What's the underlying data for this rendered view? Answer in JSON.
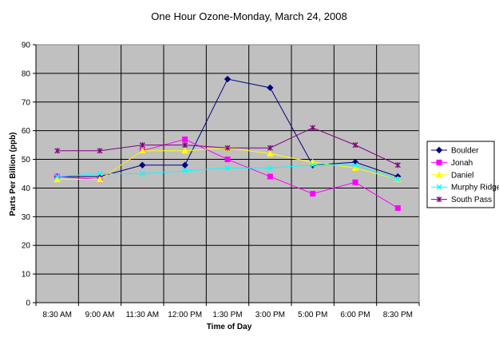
{
  "chart_data": {
    "type": "line",
    "title": "One Hour Ozone-Monday, March 24, 2008",
    "xlabel": "Time of Day",
    "ylabel": "Parts Per Billion (ppb)",
    "ylim": [
      0,
      90
    ],
    "ytick_step": 10,
    "yticks": [
      "0",
      "10",
      "20",
      "30",
      "40",
      "50",
      "60",
      "70",
      "80",
      "90"
    ],
    "categories": [
      "8:30 AM",
      "9:00 AM",
      "11:30 AM",
      "12:00 PM",
      "1:30 PM",
      "3:00 PM",
      "5:00 PM",
      "6:00 PM",
      "8:30 PM"
    ],
    "plot_background": "#c0c0c0",
    "grid": true,
    "legend_position": "right",
    "series": [
      {
        "name": "Boulder",
        "color": "#000080",
        "marker": "diamond",
        "values": [
          44,
          44,
          48,
          48,
          78,
          75,
          48,
          49,
          44
        ]
      },
      {
        "name": "Jonah",
        "color": "#ff00ff",
        "marker": "square",
        "values": [
          44,
          43,
          53,
          57,
          50,
          44,
          38,
          42,
          33
        ]
      },
      {
        "name": "Daniel",
        "color": "#ffff00",
        "marker": "triangle",
        "values": [
          43,
          43,
          53,
          53,
          54,
          52,
          49,
          47,
          43
        ]
      },
      {
        "name": "Murphy Ridge",
        "color": "#00ffff",
        "marker": "x",
        "values": [
          44,
          45,
          45,
          46,
          47,
          47,
          48,
          48,
          43
        ]
      },
      {
        "name": "South Pass",
        "color": "#800080",
        "marker": "star",
        "values": [
          53,
          53,
          55,
          55,
          54,
          54,
          61,
          55,
          48
        ]
      }
    ]
  }
}
